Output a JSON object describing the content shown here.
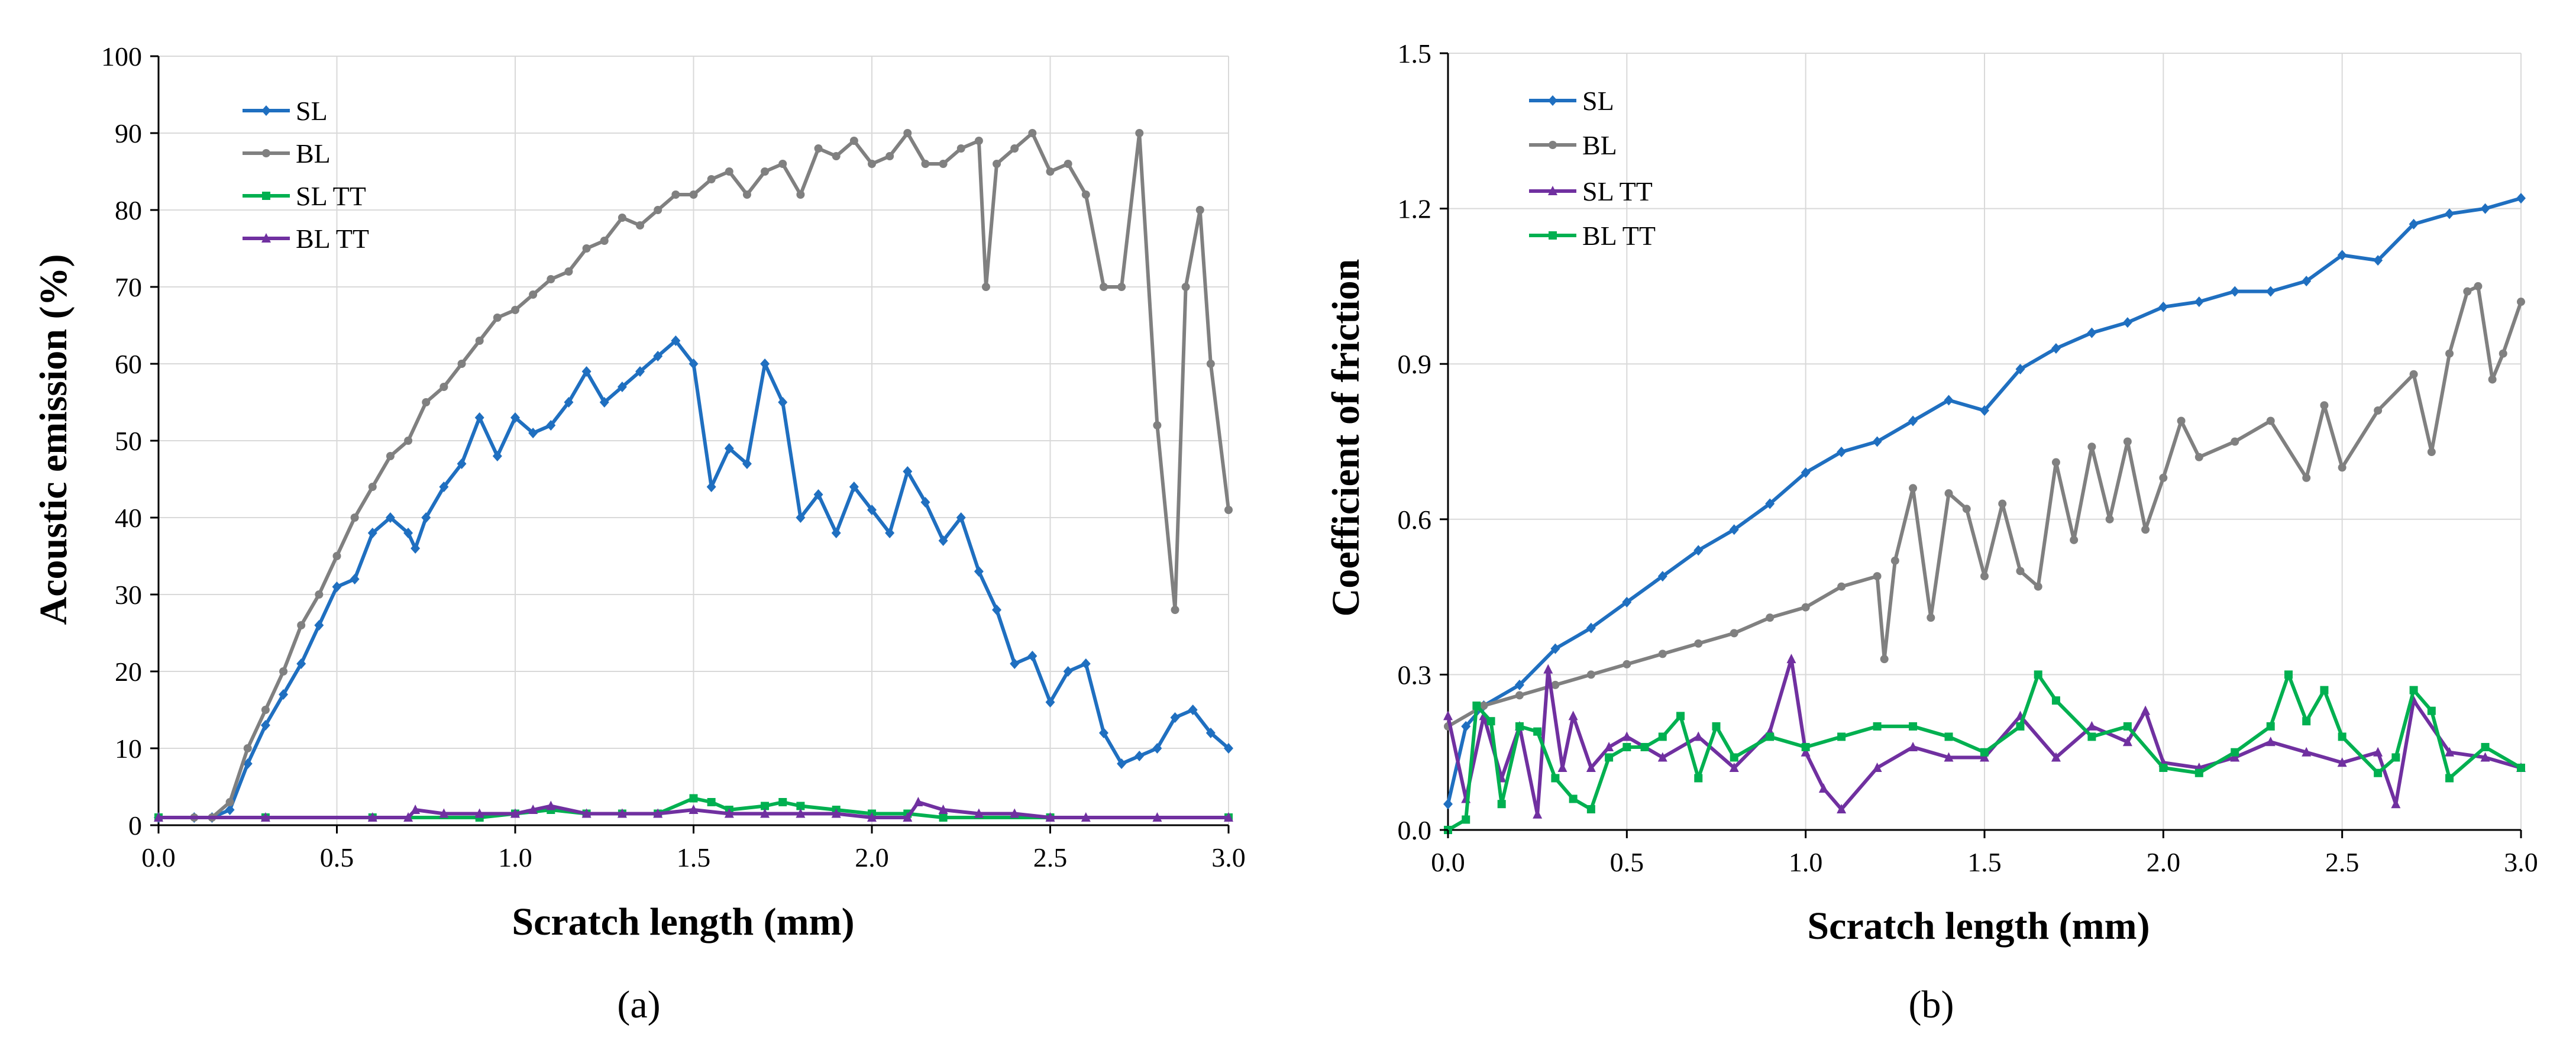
{
  "chart_data": [
    {
      "type": "line",
      "panel_label": "(a)",
      "title": "",
      "xlabel": "Scratch length (mm)",
      "ylabel": "Acoustic emission (%)",
      "xlim": [
        0,
        3
      ],
      "ylim": [
        0,
        100
      ],
      "x_ticks": [
        0,
        0.5,
        1,
        1.5,
        2,
        2.5,
        3
      ],
      "x_tick_labels": [
        "0.0",
        "0.5",
        "1.0",
        "1.5",
        "2.0",
        "2.5",
        "3.0"
      ],
      "y_ticks": [
        0,
        10,
        20,
        30,
        40,
        50,
        60,
        70,
        80,
        90,
        100
      ],
      "y_tick_labels": [
        "0",
        "10",
        "20",
        "30",
        "40",
        "50",
        "60",
        "70",
        "80",
        "90",
        "100"
      ],
      "grid": true,
      "legend_position": "top-left",
      "series": [
        {
          "name": "SL",
          "color": "#1f6fc0",
          "marker": "diamond",
          "x": [
            0,
            0.1,
            0.15,
            0.2,
            0.25,
            0.3,
            0.35,
            0.4,
            0.45,
            0.5,
            0.55,
            0.6,
            0.65,
            0.7,
            0.72,
            0.75,
            0.8,
            0.85,
            0.9,
            0.95,
            1.0,
            1.05,
            1.1,
            1.15,
            1.2,
            1.25,
            1.3,
            1.35,
            1.4,
            1.45,
            1.5,
            1.55,
            1.6,
            1.65,
            1.7,
            1.75,
            1.8,
            1.85,
            1.9,
            1.95,
            2.0,
            2.05,
            2.1,
            2.15,
            2.2,
            2.25,
            2.3,
            2.35,
            2.4,
            2.45,
            2.5,
            2.55,
            2.6,
            2.65,
            2.7,
            2.75,
            2.8,
            2.85,
            2.9,
            2.95,
            3.0
          ],
          "y": [
            1,
            1,
            1,
            2,
            8,
            13,
            17,
            21,
            26,
            31,
            32,
            38,
            40,
            38,
            36,
            40,
            44,
            47,
            53,
            48,
            53,
            51,
            52,
            55,
            59,
            55,
            57,
            59,
            61,
            63,
            60,
            44,
            49,
            47,
            60,
            55,
            40,
            43,
            38,
            44,
            41,
            38,
            46,
            42,
            37,
            40,
            33,
            28,
            21,
            22,
            16,
            20,
            21,
            12,
            8,
            9,
            10,
            14,
            15,
            12,
            10
          ]
        },
        {
          "name": "BL",
          "color": "#808080",
          "marker": "circle",
          "x": [
            0,
            0.1,
            0.15,
            0.2,
            0.25,
            0.3,
            0.35,
            0.4,
            0.45,
            0.5,
            0.55,
            0.6,
            0.65,
            0.7,
            0.75,
            0.8,
            0.85,
            0.9,
            0.95,
            1.0,
            1.05,
            1.1,
            1.15,
            1.2,
            1.25,
            1.3,
            1.35,
            1.4,
            1.45,
            1.5,
            1.55,
            1.6,
            1.65,
            1.7,
            1.75,
            1.8,
            1.85,
            1.9,
            1.95,
            2.0,
            2.05,
            2.1,
            2.15,
            2.2,
            2.25,
            2.3,
            2.32,
            2.35,
            2.4,
            2.45,
            2.5,
            2.55,
            2.6,
            2.65,
            2.7,
            2.75,
            2.8,
            2.85,
            2.88,
            2.92,
            2.95,
            3.0
          ],
          "y": [
            1,
            1,
            1,
            3,
            10,
            15,
            20,
            26,
            30,
            35,
            40,
            44,
            48,
            50,
            55,
            57,
            60,
            63,
            66,
            67,
            69,
            71,
            72,
            75,
            76,
            79,
            78,
            80,
            82,
            82,
            84,
            85,
            82,
            85,
            86,
            82,
            88,
            87,
            89,
            86,
            87,
            90,
            86,
            86,
            88,
            89,
            70,
            86,
            88,
            90,
            85,
            86,
            82,
            70,
            70,
            90,
            52,
            28,
            70,
            80,
            60,
            41
          ]
        },
        {
          "name": "SL TT",
          "color": "#00b050",
          "marker": "square",
          "x": [
            0,
            0.3,
            0.6,
            0.9,
            1.0,
            1.1,
            1.2,
            1.3,
            1.4,
            1.5,
            1.55,
            1.6,
            1.7,
            1.75,
            1.8,
            1.9,
            2.0,
            2.1,
            2.2,
            2.5,
            3.0
          ],
          "y": [
            1,
            1,
            1,
            1,
            1.5,
            2,
            1.5,
            1.5,
            1.5,
            3.5,
            3,
            2,
            2.5,
            3,
            2.5,
            2,
            1.5,
            1.5,
            1,
            1,
            1
          ]
        },
        {
          "name": "BL TT",
          "color": "#7030a0",
          "marker": "triangle",
          "x": [
            0,
            0.3,
            0.6,
            0.7,
            0.72,
            0.8,
            0.9,
            1.0,
            1.05,
            1.1,
            1.2,
            1.3,
            1.4,
            1.5,
            1.6,
            1.7,
            1.8,
            1.9,
            2.0,
            2.1,
            2.13,
            2.2,
            2.3,
            2.4,
            2.5,
            2.6,
            2.8,
            3.0
          ],
          "y": [
            1,
            1,
            1,
            1,
            2,
            1.5,
            1.5,
            1.5,
            2,
            2.5,
            1.5,
            1.5,
            1.5,
            2,
            1.5,
            1.5,
            1.5,
            1.5,
            1,
            1,
            3,
            2,
            1.5,
            1.5,
            1,
            1,
            1,
            1
          ]
        }
      ]
    },
    {
      "type": "line",
      "panel_label": "(b)",
      "title": "",
      "xlabel": "Scratch length (mm)",
      "ylabel": "Coefficient of friction",
      "xlim": [
        0,
        3
      ],
      "ylim": [
        0,
        1.5
      ],
      "x_ticks": [
        0,
        0.5,
        1,
        1.5,
        2,
        2.5,
        3
      ],
      "x_tick_labels": [
        "0.0",
        "0.5",
        "1.0",
        "1.5",
        "2.0",
        "2.5",
        "3.0"
      ],
      "y_ticks": [
        0,
        0.3,
        0.6,
        0.9,
        1.2,
        1.5
      ],
      "y_tick_labels": [
        "0.0",
        "0.3",
        "0.6",
        "0.9",
        "1.2",
        "1.5"
      ],
      "grid": true,
      "legend_position": "top-left",
      "series": [
        {
          "name": "SL",
          "color": "#1f6fc0",
          "marker": "diamond",
          "x": [
            0,
            0.05,
            0.1,
            0.2,
            0.3,
            0.4,
            0.5,
            0.6,
            0.7,
            0.8,
            0.9,
            1.0,
            1.1,
            1.2,
            1.3,
            1.4,
            1.5,
            1.6,
            1.7,
            1.8,
            1.9,
            2.0,
            2.1,
            2.2,
            2.3,
            2.4,
            2.5,
            2.6,
            2.7,
            2.8,
            2.9,
            3.0
          ],
          "y": [
            0.05,
            0.2,
            0.24,
            0.28,
            0.35,
            0.39,
            0.44,
            0.49,
            0.54,
            0.58,
            0.63,
            0.69,
            0.73,
            0.75,
            0.79,
            0.83,
            0.81,
            0.89,
            0.93,
            0.96,
            0.98,
            1.01,
            1.02,
            1.04,
            1.04,
            1.06,
            1.11,
            1.1,
            1.17,
            1.19,
            1.2,
            1.22
          ]
        },
        {
          "name": "BL",
          "color": "#808080",
          "marker": "circle",
          "x": [
            0,
            0.1,
            0.2,
            0.3,
            0.4,
            0.5,
            0.6,
            0.7,
            0.8,
            0.9,
            1.0,
            1.1,
            1.2,
            1.22,
            1.25,
            1.3,
            1.35,
            1.4,
            1.45,
            1.5,
            1.55,
            1.6,
            1.65,
            1.7,
            1.75,
            1.8,
            1.85,
            1.9,
            1.95,
            2.0,
            2.05,
            2.1,
            2.2,
            2.3,
            2.4,
            2.45,
            2.5,
            2.6,
            2.7,
            2.75,
            2.8,
            2.85,
            2.88,
            2.92,
            2.95,
            3.0
          ],
          "y": [
            0.2,
            0.24,
            0.26,
            0.28,
            0.3,
            0.32,
            0.34,
            0.36,
            0.38,
            0.41,
            0.43,
            0.47,
            0.49,
            0.33,
            0.52,
            0.66,
            0.41,
            0.65,
            0.62,
            0.49,
            0.63,
            0.5,
            0.47,
            0.71,
            0.56,
            0.74,
            0.6,
            0.75,
            0.58,
            0.68,
            0.79,
            0.72,
            0.75,
            0.79,
            0.68,
            0.82,
            0.7,
            0.81,
            0.88,
            0.73,
            0.92,
            1.04,
            1.05,
            0.87,
            0.92,
            1.02
          ]
        },
        {
          "name": "SL TT",
          "color": "#7030a0",
          "marker": "triangle",
          "x": [
            0,
            0.05,
            0.1,
            0.15,
            0.2,
            0.25,
            0.28,
            0.32,
            0.35,
            0.4,
            0.45,
            0.5,
            0.6,
            0.7,
            0.8,
            0.9,
            0.96,
            1.0,
            1.05,
            1.1,
            1.2,
            1.3,
            1.4,
            1.5,
            1.6,
            1.7,
            1.8,
            1.9,
            1.95,
            2.0,
            2.1,
            2.2,
            2.3,
            2.4,
            2.5,
            2.6,
            2.65,
            2.7,
            2.8,
            2.9,
            3.0
          ],
          "y": [
            0.22,
            0.06,
            0.22,
            0.1,
            0.2,
            0.03,
            0.31,
            0.12,
            0.22,
            0.12,
            0.16,
            0.18,
            0.14,
            0.18,
            0.12,
            0.19,
            0.33,
            0.15,
            0.08,
            0.04,
            0.12,
            0.16,
            0.14,
            0.14,
            0.22,
            0.14,
            0.2,
            0.17,
            0.23,
            0.13,
            0.12,
            0.14,
            0.17,
            0.15,
            0.13,
            0.15,
            0.05,
            0.25,
            0.15,
            0.14,
            0.12
          ]
        },
        {
          "name": "BL TT",
          "color": "#00b050",
          "marker": "square",
          "x": [
            0,
            0.05,
            0.08,
            0.12,
            0.15,
            0.2,
            0.25,
            0.3,
            0.35,
            0.4,
            0.45,
            0.5,
            0.55,
            0.6,
            0.65,
            0.7,
            0.75,
            0.8,
            0.9,
            1.0,
            1.1,
            1.2,
            1.3,
            1.4,
            1.5,
            1.6,
            1.65,
            1.7,
            1.8,
            1.9,
            2.0,
            2.1,
            2.2,
            2.3,
            2.35,
            2.4,
            2.45,
            2.5,
            2.6,
            2.65,
            2.7,
            2.75,
            2.8,
            2.9,
            3.0
          ],
          "y": [
            0.0,
            0.02,
            0.24,
            0.21,
            0.05,
            0.2,
            0.19,
            0.1,
            0.06,
            0.04,
            0.14,
            0.16,
            0.16,
            0.18,
            0.22,
            0.1,
            0.2,
            0.14,
            0.18,
            0.16,
            0.18,
            0.2,
            0.2,
            0.18,
            0.15,
            0.2,
            0.3,
            0.25,
            0.18,
            0.2,
            0.12,
            0.11,
            0.15,
            0.2,
            0.3,
            0.21,
            0.27,
            0.18,
            0.11,
            0.14,
            0.27,
            0.23,
            0.1,
            0.16,
            0.12
          ]
        }
      ]
    }
  ]
}
